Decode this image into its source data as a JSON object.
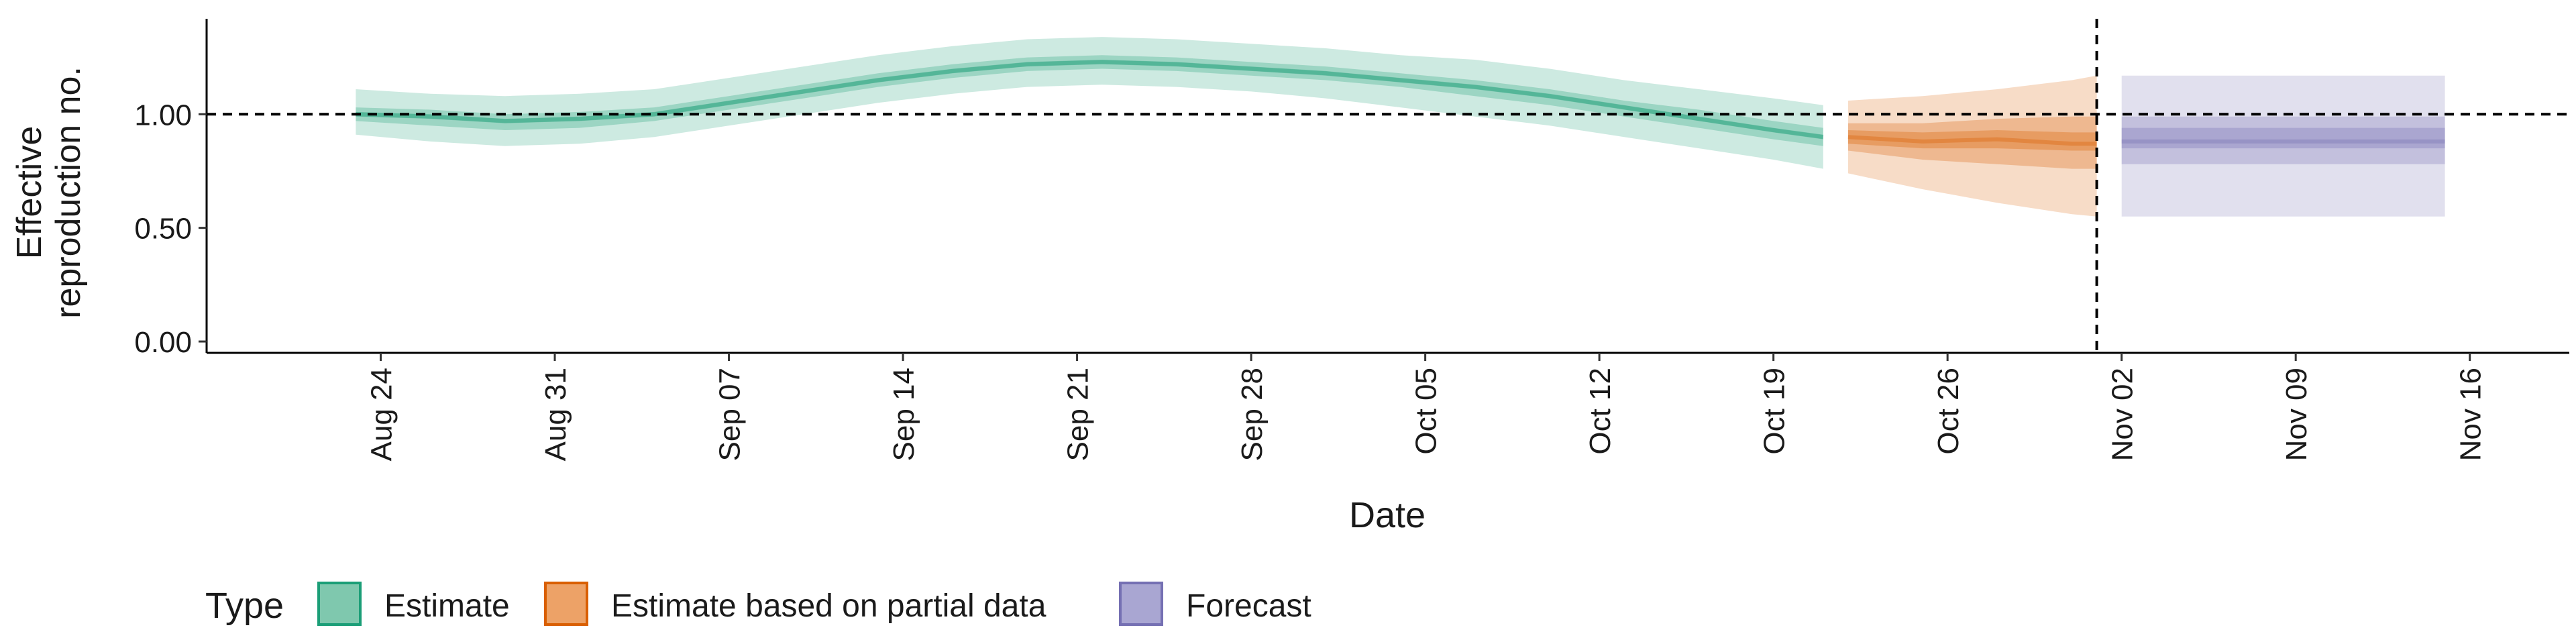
{
  "chart_data": {
    "type": "area",
    "xlabel": "Date",
    "ylabel_lines": [
      "Effective",
      "reproduction no."
    ],
    "ylim": [
      -0.05,
      1.42
    ],
    "y_ticks": [
      0.0,
      0.5,
      1.0
    ],
    "y_tick_labels": [
      "0.00",
      "0.50",
      "1.00"
    ],
    "reference_line_y": 1.0,
    "reference_line_x": "2020-11-01",
    "x_ticks": [
      "2020-08-24",
      "2020-08-31",
      "2020-09-07",
      "2020-09-14",
      "2020-09-21",
      "2020-09-28",
      "2020-10-05",
      "2020-10-12",
      "2020-10-19",
      "2020-10-26",
      "2020-11-02",
      "2020-11-09",
      "2020-11-16"
    ],
    "x_tick_labels": [
      "Aug 24",
      "Aug 31",
      "Sep 07",
      "Sep 14",
      "Sep 21",
      "Sep 28",
      "Oct 05",
      "Oct 12",
      "Oct 19",
      "Oct 26",
      "Nov 02",
      "Nov 09",
      "Nov 16"
    ],
    "x_range": [
      "2020-08-17",
      "2020-11-20"
    ],
    "legend": {
      "title": "Type",
      "position": "bottom",
      "items": [
        {
          "label": "Estimate",
          "fill": "#7fc8ae",
          "stroke": "#1b9e77"
        },
        {
          "label": "Estimate based on partial data",
          "fill": "#eda267",
          "stroke": "#d95f02"
        },
        {
          "label": "Forecast",
          "fill": "#a9a6d2",
          "stroke": "#7570b3"
        }
      ]
    },
    "series": [
      {
        "type_label": "Estimate",
        "color": "#1b9e77",
        "x": [
          "2020-08-23",
          "2020-08-26",
          "2020-08-29",
          "2020-09-01",
          "2020-09-04",
          "2020-09-07",
          "2020-09-10",
          "2020-09-13",
          "2020-09-16",
          "2020-09-19",
          "2020-09-22",
          "2020-09-25",
          "2020-09-28",
          "2020-10-01",
          "2020-10-04",
          "2020-10-07",
          "2020-10-10",
          "2020-10-13",
          "2020-10-16",
          "2020-10-19",
          "2020-10-21"
        ],
        "median": [
          1.0,
          0.99,
          0.97,
          0.98,
          1.0,
          1.05,
          1.1,
          1.15,
          1.19,
          1.22,
          1.23,
          1.22,
          1.2,
          1.18,
          1.15,
          1.12,
          1.08,
          1.03,
          0.98,
          0.93,
          0.9
        ],
        "lower_90": [
          0.91,
          0.88,
          0.86,
          0.87,
          0.9,
          0.95,
          1.0,
          1.05,
          1.09,
          1.12,
          1.13,
          1.12,
          1.1,
          1.07,
          1.03,
          0.99,
          0.95,
          0.9,
          0.85,
          0.8,
          0.76
        ],
        "upper_90": [
          1.11,
          1.09,
          1.08,
          1.09,
          1.11,
          1.16,
          1.21,
          1.26,
          1.3,
          1.33,
          1.34,
          1.33,
          1.31,
          1.29,
          1.26,
          1.24,
          1.2,
          1.15,
          1.11,
          1.07,
          1.04
        ],
        "lower_50": [
          0.97,
          0.95,
          0.93,
          0.94,
          0.97,
          1.02,
          1.07,
          1.12,
          1.16,
          1.19,
          1.2,
          1.19,
          1.17,
          1.15,
          1.12,
          1.08,
          1.04,
          0.99,
          0.94,
          0.89,
          0.86
        ],
        "upper_50": [
          1.03,
          1.02,
          1.0,
          1.01,
          1.03,
          1.08,
          1.13,
          1.18,
          1.22,
          1.25,
          1.26,
          1.25,
          1.23,
          1.21,
          1.18,
          1.15,
          1.11,
          1.06,
          1.02,
          0.97,
          0.94
        ],
        "lower_20": [
          0.99,
          0.98,
          0.96,
          0.97,
          0.99,
          1.04,
          1.09,
          1.14,
          1.18,
          1.21,
          1.22,
          1.21,
          1.19,
          1.17,
          1.14,
          1.11,
          1.07,
          1.02,
          0.97,
          0.92,
          0.89
        ],
        "upper_20": [
          1.01,
          1.0,
          0.98,
          0.99,
          1.01,
          1.06,
          1.11,
          1.16,
          1.2,
          1.23,
          1.24,
          1.23,
          1.21,
          1.19,
          1.16,
          1.13,
          1.09,
          1.04,
          0.99,
          0.94,
          0.91
        ]
      },
      {
        "type_label": "Estimate based on partial data",
        "color": "#d95f02",
        "x": [
          "2020-10-22",
          "2020-10-25",
          "2020-10-28",
          "2020-10-31",
          "2020-11-01"
        ],
        "median": [
          0.9,
          0.88,
          0.89,
          0.87,
          0.87
        ],
        "lower_90": [
          0.74,
          0.67,
          0.61,
          0.56,
          0.55
        ],
        "upper_90": [
          1.06,
          1.08,
          1.11,
          1.15,
          1.17
        ],
        "lower_50": [
          0.84,
          0.8,
          0.78,
          0.76,
          0.76
        ],
        "upper_50": [
          0.96,
          0.96,
          0.98,
          0.99,
          0.99
        ],
        "lower_20": [
          0.87,
          0.85,
          0.85,
          0.84,
          0.84
        ],
        "upper_20": [
          0.93,
          0.92,
          0.93,
          0.92,
          0.92
        ]
      },
      {
        "type_label": "Forecast",
        "color": "#7570b3",
        "x": [
          "2020-11-02",
          "2020-11-15"
        ],
        "median": [
          0.88,
          0.88
        ],
        "lower_90": [
          0.55,
          0.55
        ],
        "upper_90": [
          1.17,
          1.17
        ],
        "lower_50": [
          0.78,
          0.78
        ],
        "upper_50": [
          0.99,
          0.99
        ],
        "lower_20": [
          0.85,
          0.85
        ],
        "upper_20": [
          0.94,
          0.94
        ]
      }
    ]
  }
}
